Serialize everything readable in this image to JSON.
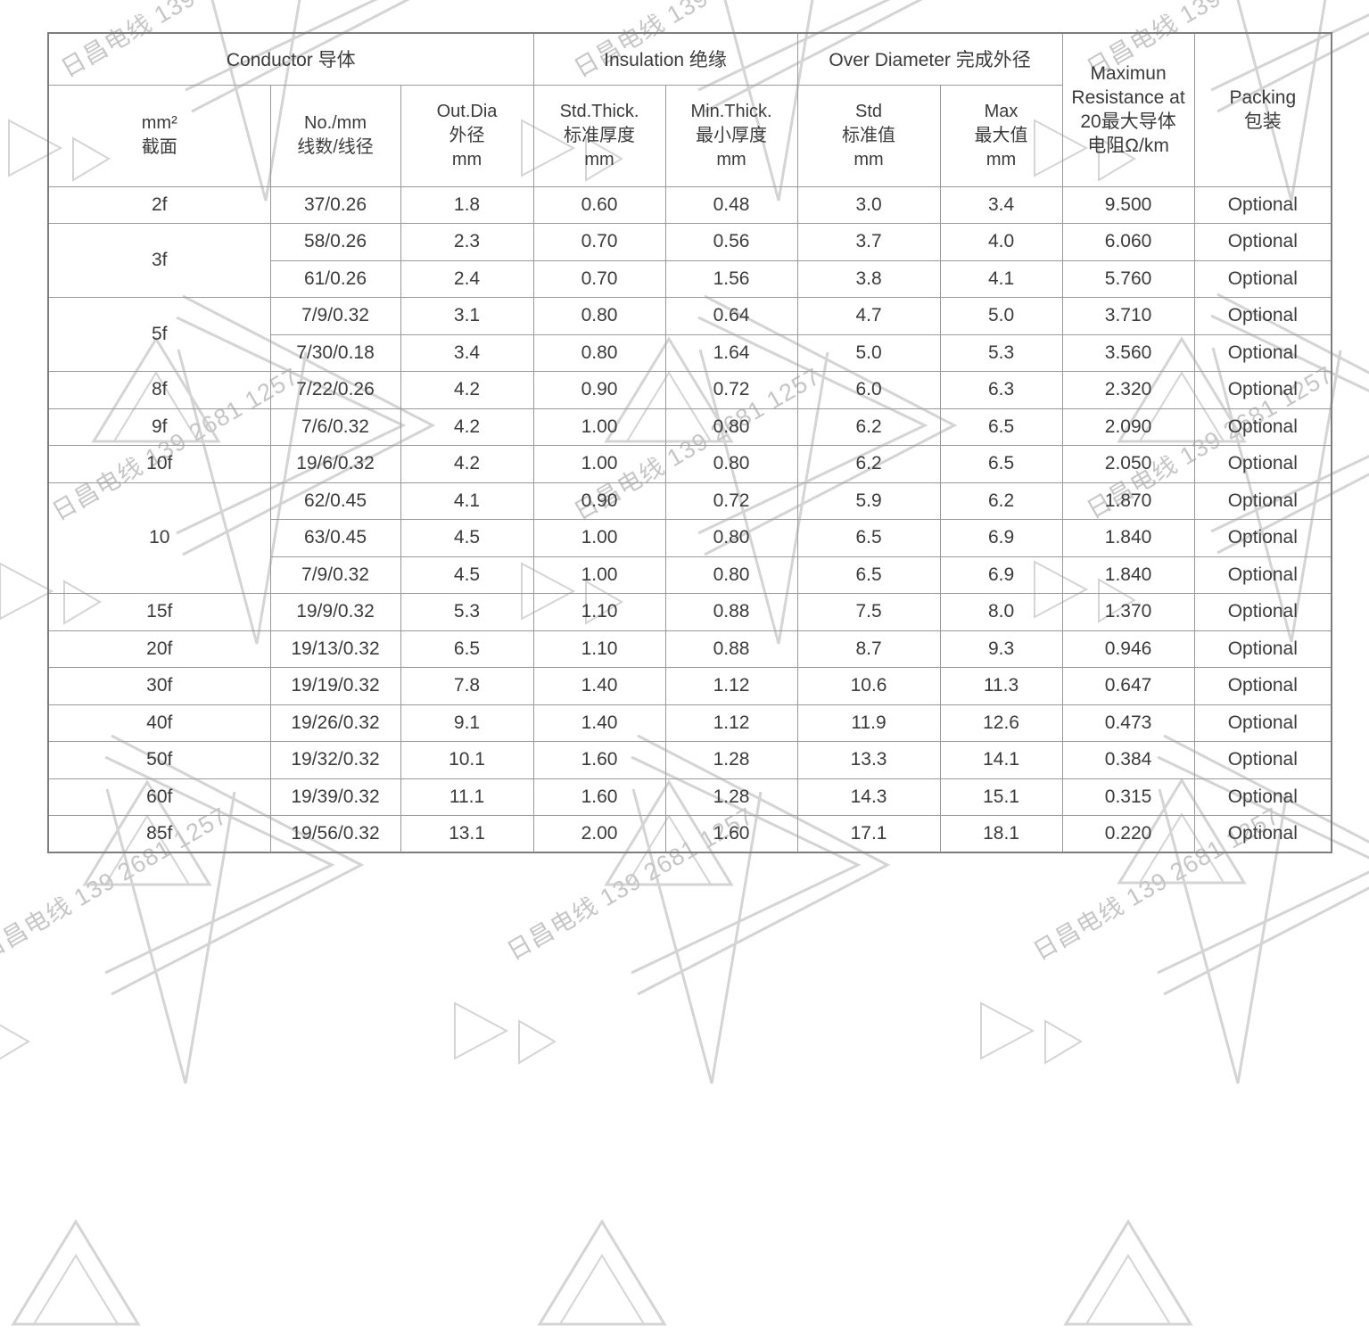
{
  "watermark": {
    "text": "日昌电线 139 2681 1257"
  },
  "table": {
    "header_groups": [
      {
        "label": "Conductor 导体"
      },
      {
        "label": "Insulation 绝缘"
      },
      {
        "label": "Over Diameter 完成外径"
      }
    ],
    "resistance_header": "Maximun\nResistance at\n20最大导体\n电阻Ω/km",
    "packing_header": "Packing\n包装",
    "sub_headers": [
      "mm²\n截面",
      "No./mm\n线数/线径",
      "Out.Dia\n外径\nmm",
      "Std.Thick.\n标准厚度\nmm",
      "Min.Thick.\n最小厚度\nmm",
      "Std\n标准值\nmm",
      "Max\n最大值\nmm"
    ],
    "groups": [
      {
        "size": "2f",
        "rows": [
          {
            "cells": [
              "37/0.26",
              "1.8",
              "0.60",
              "0.48",
              "3.0",
              "3.4",
              "9.500",
              "Optional"
            ]
          }
        ]
      },
      {
        "size": "3f",
        "rows": [
          {
            "cells": [
              "58/0.26",
              "2.3",
              "0.70",
              "0.56",
              "3.7",
              "4.0",
              "6.060",
              "Optional"
            ]
          },
          {
            "cells": [
              "61/0.26",
              "2.4",
              "0.70",
              "1.56",
              "3.8",
              "4.1",
              "5.760",
              "Optional"
            ]
          }
        ]
      },
      {
        "size": "5f",
        "rows": [
          {
            "cells": [
              "7/9/0.32",
              "3.1",
              "0.80",
              "0.64",
              "4.7",
              "5.0",
              "3.710",
              "Optional"
            ]
          },
          {
            "cells": [
              "7/30/0.18",
              "3.4",
              "0.80",
              "1.64",
              "5.0",
              "5.3",
              "3.560",
              "Optional"
            ]
          }
        ]
      },
      {
        "size": "8f",
        "rows": [
          {
            "cells": [
              "7/22/0.26",
              "4.2",
              "0.90",
              "0.72",
              "6.0",
              "6.3",
              "2.320",
              "Optional"
            ]
          }
        ]
      },
      {
        "size": "9f",
        "rows": [
          {
            "cells": [
              "7/6/0.32",
              "4.2",
              "1.00",
              "0.80",
              "6.2",
              "6.5",
              "2.090",
              "Optional"
            ]
          }
        ]
      },
      {
        "size": "10f",
        "rows": [
          {
            "cells": [
              "19/6/0.32",
              "4.2",
              "1.00",
              "0.80",
              "6.2",
              "6.5",
              "2.050",
              "Optional"
            ]
          }
        ]
      },
      {
        "size": "10",
        "rows": [
          {
            "cells": [
              "62/0.45",
              "4.1",
              "0.90",
              "0.72",
              "5.9",
              "6.2",
              "1.870",
              "Optional"
            ]
          },
          {
            "cells": [
              "63/0.45",
              "4.5",
              "1.00",
              "0.80",
              "6.5",
              "6.9",
              "1.840",
              "Optional"
            ]
          },
          {
            "cells": [
              "7/9/0.32",
              "4.5",
              "1.00",
              "0.80",
              "6.5",
              "6.9",
              "1.840",
              "Optional"
            ]
          }
        ]
      },
      {
        "size": "15f",
        "rows": [
          {
            "cells": [
              "19/9/0.32",
              "5.3",
              "1.10",
              "0.88",
              "7.5",
              "8.0",
              "1.370",
              "Optional"
            ]
          }
        ]
      },
      {
        "size": "20f",
        "rows": [
          {
            "cells": [
              "19/13/0.32",
              "6.5",
              "1.10",
              "0.88",
              "8.7",
              "9.3",
              "0.946",
              "Optional"
            ]
          }
        ]
      },
      {
        "size": "30f",
        "rows": [
          {
            "cells": [
              "19/19/0.32",
              "7.8",
              "1.40",
              "1.12",
              "10.6",
              "11.3",
              "0.647",
              "Optional"
            ]
          }
        ]
      },
      {
        "size": "40f",
        "rows": [
          {
            "cells": [
              "19/26/0.32",
              "9.1",
              "1.40",
              "1.12",
              "11.9",
              "12.6",
              "0.473",
              "Optional"
            ]
          }
        ]
      },
      {
        "size": "50f",
        "rows": [
          {
            "cells": [
              "19/32/0.32",
              "10.1",
              "1.60",
              "1.28",
              "13.3",
              "14.1",
              "0.384",
              "Optional"
            ]
          }
        ]
      },
      {
        "size": "60f",
        "rows": [
          {
            "cells": [
              "19/39/0.32",
              "11.1",
              "1.60",
              "1.28",
              "14.3",
              "15.1",
              "0.315",
              "Optional"
            ]
          }
        ]
      },
      {
        "size": "85f",
        "rows": [
          {
            "cells": [
              "19/56/0.32",
              "13.1",
              "2.00",
              "1.60",
              "17.1",
              "18.1",
              "0.220",
              "Optional"
            ]
          }
        ]
      }
    ]
  }
}
